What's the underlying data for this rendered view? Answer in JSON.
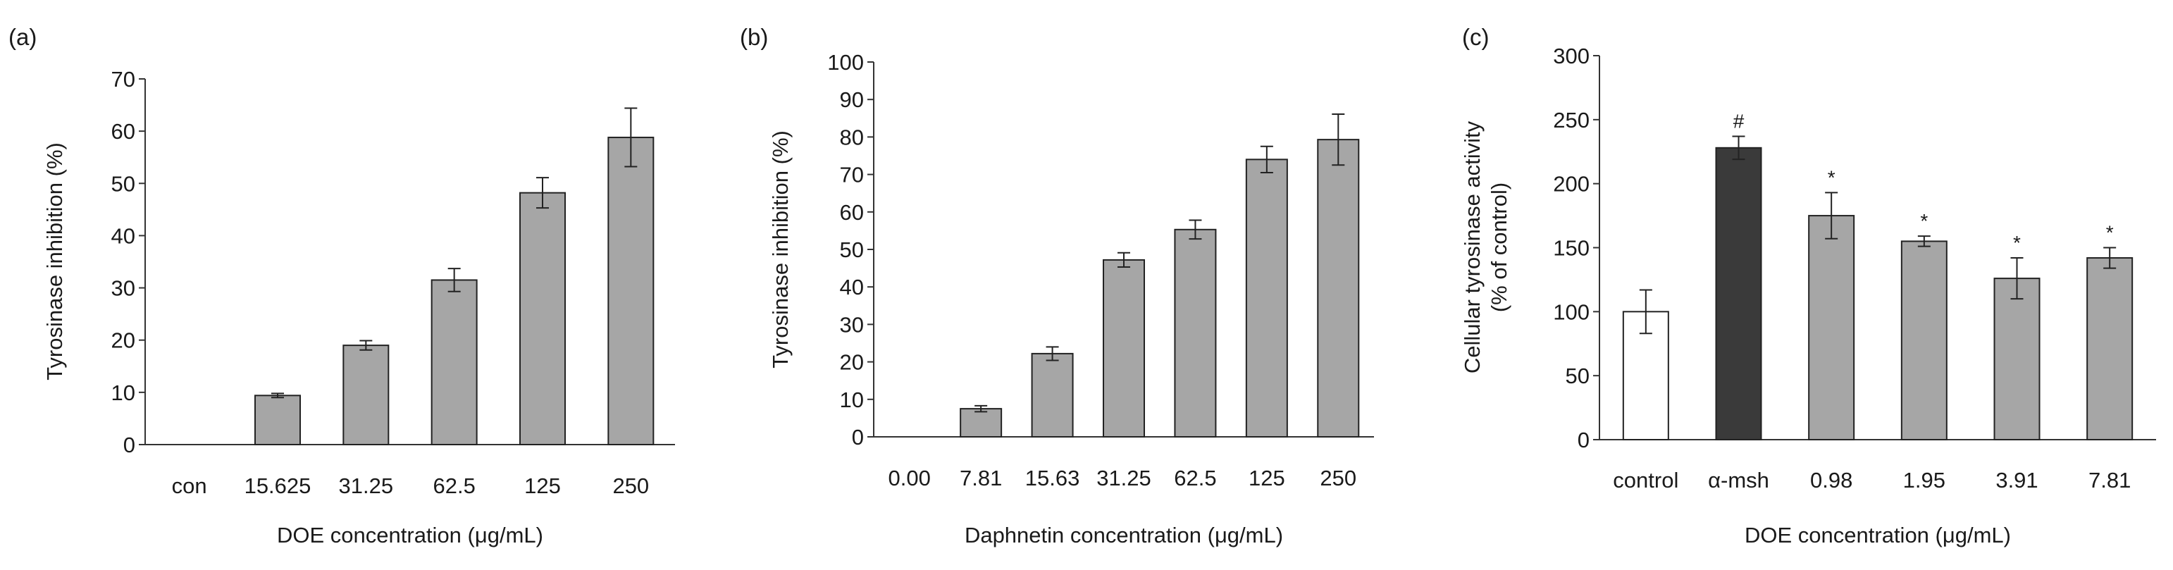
{
  "chart_data": [
    {
      "panel_label": "(a)",
      "type": "bar",
      "categories": [
        "con",
        "15.625",
        "31.25",
        "62.5",
        "125",
        "250"
      ],
      "values": [
        0,
        9.4,
        19.0,
        31.5,
        48.2,
        58.8
      ],
      "errors": [
        0,
        0.4,
        0.9,
        2.2,
        2.9,
        5.6
      ],
      "annotations": [
        "",
        "",
        "",
        "",
        "",
        ""
      ],
      "colors": [
        "#a6a6a6",
        "#a6a6a6",
        "#a6a6a6",
        "#a6a6a6",
        "#a6a6a6",
        "#a6a6a6"
      ],
      "xlabel": "DOE concentration (μg/mL)",
      "ylabel": "Tyrosinase inhibition (%)",
      "ylim": [
        0,
        70
      ],
      "yticks": [
        0,
        10,
        20,
        30,
        40,
        50,
        60,
        70
      ],
      "grid": false
    },
    {
      "panel_label": "(b)",
      "type": "bar",
      "categories": [
        "0.00",
        "7.81",
        "15.63",
        "31.25",
        "62.5",
        "125",
        "250"
      ],
      "values": [
        0,
        7.5,
        22.2,
        47.2,
        55.3,
        74.0,
        79.3
      ],
      "errors": [
        0,
        0.8,
        1.8,
        1.9,
        2.5,
        3.5,
        6.8
      ],
      "annotations": [
        "",
        "",
        "",
        "",
        "",
        "",
        ""
      ],
      "colors": [
        "#a6a6a6",
        "#a6a6a6",
        "#a6a6a6",
        "#a6a6a6",
        "#a6a6a6",
        "#a6a6a6",
        "#a6a6a6"
      ],
      "xlabel": "Daphnetin concentration (μg/mL)",
      "ylabel": "Tyrosinase inhibition (%)",
      "ylim": [
        0,
        100
      ],
      "yticks": [
        0,
        10,
        20,
        30,
        40,
        50,
        60,
        70,
        80,
        90,
        100
      ],
      "grid": false
    },
    {
      "panel_label": "(c)",
      "type": "bar",
      "categories": [
        "control",
        "α-msh",
        "0.98",
        "1.95",
        "3.91",
        "7.81"
      ],
      "values": [
        100,
        228,
        175,
        155,
        126,
        142
      ],
      "errors": [
        17,
        9,
        18,
        4,
        16,
        8
      ],
      "annotations": [
        "",
        "#",
        "*",
        "*",
        "*",
        "*"
      ],
      "colors": [
        "#ffffff",
        "#3a3a3a",
        "#a6a6a6",
        "#a6a6a6",
        "#a6a6a6",
        "#a6a6a6"
      ],
      "xlabel": "DOE concentration (μg/mL)",
      "ylabel": [
        "Cellular tyrosinase activity",
        "(% of control)"
      ],
      "ylim": [
        0,
        300
      ],
      "yticks": [
        0,
        50,
        100,
        150,
        200,
        250,
        300
      ],
      "grid": false
    }
  ]
}
